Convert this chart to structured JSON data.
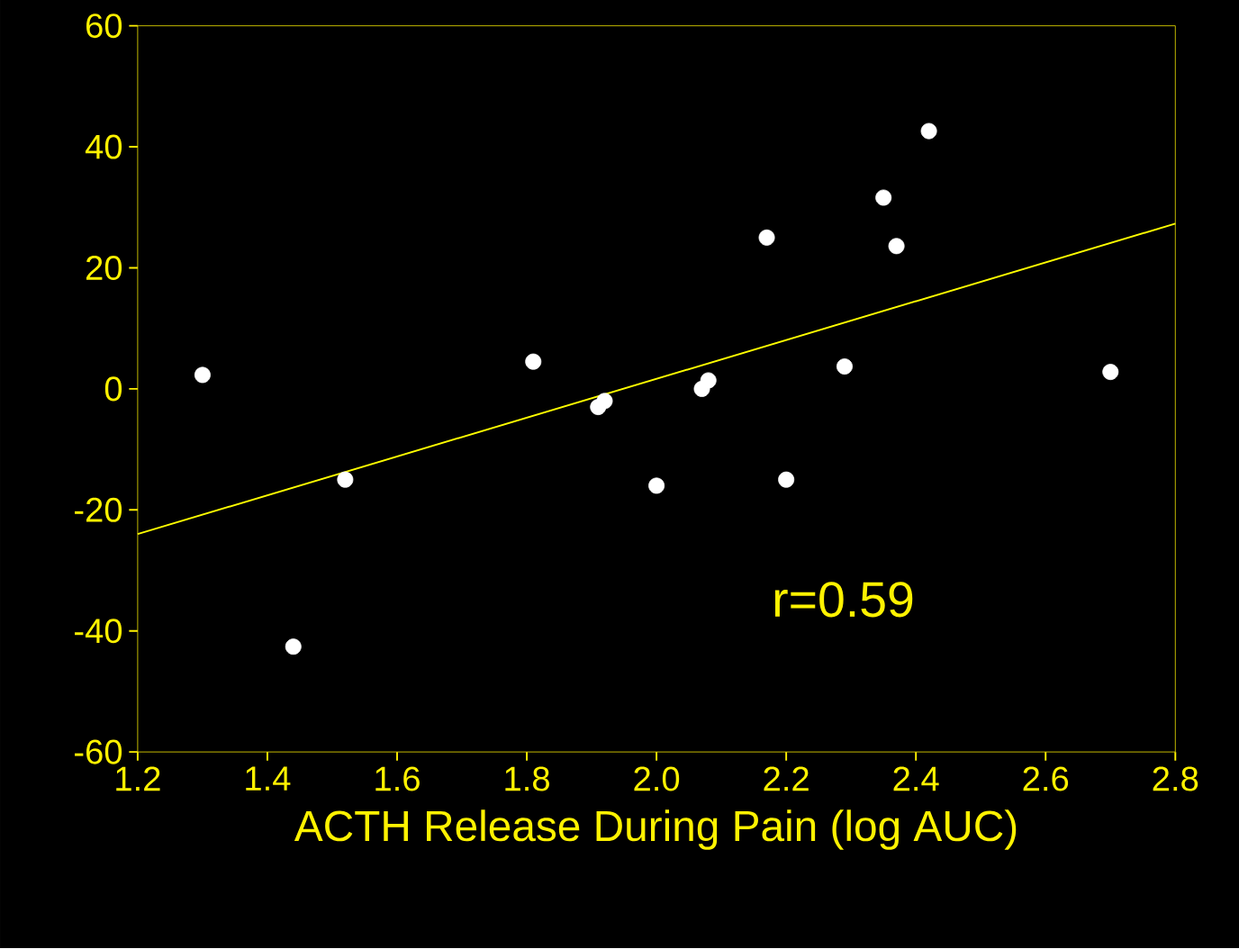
{
  "chart_data": {
    "type": "scatter",
    "xlabel": "ACTH Release During Pain (log AUC)",
    "series": [
      {
        "color": "#ffffff",
        "marker": "circle",
        "x": [
          1.3,
          1.44,
          1.52,
          1.81,
          1.91,
          1.92,
          2.0,
          2.07,
          2.08,
          2.17,
          2.2,
          2.29,
          2.35,
          2.37,
          2.42,
          2.7
        ],
        "values": [
          2.3,
          -42.6,
          -15,
          4.5,
          -3,
          -2,
          -16,
          0,
          1.4,
          25,
          -15,
          3.7,
          31.6,
          23.6,
          42.6,
          2.8
        ]
      },
      {
        "type": "line",
        "color": "#ffff00",
        "marker": "none",
        "x": [
          1.2,
          2.8
        ],
        "values": [
          -24,
          27.3
        ]
      }
    ],
    "annotations": [
      "r=0.59"
    ],
    "xlim": [
      1.2,
      2.8
    ],
    "ylim": [
      -60,
      60
    ],
    "xticks": [
      1.2,
      1.4,
      1.6,
      1.8,
      {
        "value": 2.0,
        "label": "2.0"
      },
      2.2,
      2.4,
      2.6,
      2.8
    ],
    "yticks": [
      -60,
      -40,
      -20,
      0,
      20,
      40,
      60
    ]
  }
}
